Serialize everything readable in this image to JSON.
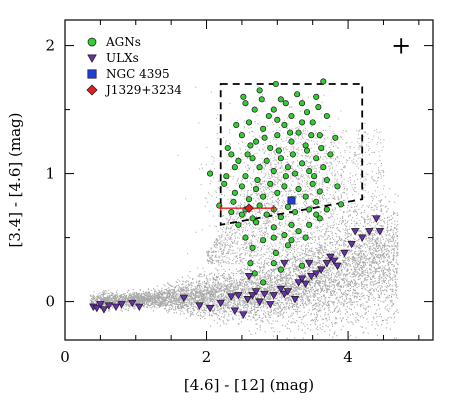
{
  "chart_data": {
    "type": "scatter",
    "title": "",
    "xlabel": "[4.6] - [12] (mag)",
    "ylabel": "[3.4] - [4.6] (mag)",
    "xlim": [
      0,
      5.2
    ],
    "ylim": [
      -0.3,
      2.2
    ],
    "x_ticks": [
      0,
      2,
      4
    ],
    "y_ticks": [
      0,
      1,
      2
    ],
    "minor_tick_step": 0.5,
    "grid": false,
    "legend": {
      "position": "top-left"
    },
    "colors": {
      "background": "#a9a9a9",
      "agn": "#33cc33",
      "ulx": "#6a2fb0",
      "ngc4395": "#1f3fd6",
      "j1329": "#e02020",
      "errorbar": "#e02020"
    },
    "series": [
      {
        "name": "AGNs",
        "marker": "circle",
        "points": [
          [
            2.05,
            1.0
          ],
          [
            2.35,
            1.15
          ],
          [
            2.55,
            1.55
          ],
          [
            2.75,
            1.65
          ],
          [
            2.95,
            1.5
          ],
          [
            3.05,
            1.58
          ],
          [
            3.2,
            1.45
          ],
          [
            3.35,
            1.55
          ],
          [
            3.65,
            1.72
          ],
          [
            3.55,
            1.6
          ],
          [
            2.25,
            0.92
          ],
          [
            2.4,
            1.05
          ],
          [
            2.5,
            1.3
          ],
          [
            2.6,
            1.4
          ],
          [
            2.7,
            1.25
          ],
          [
            2.8,
            1.35
          ],
          [
            2.9,
            1.2
          ],
          [
            3.0,
            1.3
          ],
          [
            3.1,
            1.38
          ],
          [
            3.2,
            1.25
          ],
          [
            3.3,
            1.32
          ],
          [
            3.4,
            1.22
          ],
          [
            3.5,
            1.4
          ],
          [
            3.6,
            1.3
          ],
          [
            3.7,
            1.45
          ],
          [
            2.3,
            1.2
          ],
          [
            2.45,
            1.1
          ],
          [
            2.55,
            0.98
          ],
          [
            2.65,
            1.12
          ],
          [
            2.75,
            1.05
          ],
          [
            2.85,
            1.1
          ],
          [
            2.95,
            1.02
          ],
          [
            3.05,
            1.12
          ],
          [
            3.15,
            1.05
          ],
          [
            3.25,
            1.0
          ],
          [
            3.35,
            1.08
          ],
          [
            3.45,
            1.02
          ],
          [
            3.55,
            1.12
          ],
          [
            3.65,
            1.05
          ],
          [
            3.75,
            1.15
          ],
          [
            2.4,
            0.85
          ],
          [
            2.5,
            0.9
          ],
          [
            2.6,
            0.8
          ],
          [
            2.7,
            0.88
          ],
          [
            2.8,
            0.82
          ],
          [
            2.9,
            0.92
          ],
          [
            3.0,
            0.85
          ],
          [
            3.1,
            0.9
          ],
          [
            3.2,
            0.8
          ],
          [
            3.3,
            0.88
          ],
          [
            3.4,
            0.82
          ],
          [
            3.5,
            0.92
          ],
          [
            3.6,
            0.86
          ],
          [
            3.7,
            0.95
          ],
          [
            2.35,
            0.7
          ],
          [
            2.55,
            0.72
          ],
          [
            2.65,
            0.65
          ],
          [
            2.75,
            0.75
          ],
          [
            2.85,
            0.68
          ],
          [
            2.95,
            0.72
          ],
          [
            3.05,
            0.66
          ],
          [
            3.15,
            0.74
          ],
          [
            3.25,
            0.7
          ],
          [
            3.45,
            0.72
          ],
          [
            3.55,
            0.78
          ],
          [
            2.45,
            0.6
          ],
          [
            2.7,
            0.62
          ],
          [
            2.95,
            0.58
          ],
          [
            3.2,
            0.6
          ],
          [
            3.6,
            0.65
          ],
          [
            2.52,
            1.6
          ],
          [
            2.88,
            1.45
          ],
          [
            3.12,
            1.55
          ],
          [
            3.42,
            1.48
          ],
          [
            2.68,
            1.5
          ],
          [
            3.28,
            1.62
          ],
          [
            2.98,
            1.7
          ],
          [
            3.58,
            1.52
          ],
          [
            2.42,
            1.38
          ],
          [
            3.82,
            1.28
          ],
          [
            2.62,
            1.22
          ],
          [
            2.82,
            1.28
          ],
          [
            3.02,
            1.18
          ],
          [
            3.22,
            1.15
          ],
          [
            3.42,
            1.18
          ],
          [
            3.62,
            1.2
          ],
          [
            2.72,
            0.95
          ],
          [
            3.12,
            0.98
          ],
          [
            3.52,
            0.98
          ],
          [
            3.85,
            0.9
          ],
          [
            2.95,
            0.5
          ],
          [
            3.1,
            0.52
          ],
          [
            3.3,
            0.55
          ],
          [
            2.8,
            0.48
          ],
          [
            3.45,
            0.6
          ],
          [
            2.98,
            0.38
          ],
          [
            2.65,
            0.42
          ],
          [
            2.95,
            0.3
          ],
          [
            3.15,
            0.44
          ],
          [
            2.62,
            0.3
          ],
          [
            2.68,
            0.22
          ],
          [
            3.05,
            0.25
          ],
          [
            2.8,
            0.15
          ],
          [
            3.35,
            0.28
          ],
          [
            3.55,
            0.68
          ],
          [
            3.2,
            0.48
          ],
          [
            3.4,
            0.5
          ],
          [
            2.55,
            0.5
          ],
          [
            3.7,
            0.72
          ],
          [
            3.9,
            0.76
          ],
          [
            2.28,
            0.98
          ],
          [
            2.38,
            0.78
          ],
          [
            2.18,
            0.75
          ],
          [
            2.5,
            0.68
          ],
          [
            3.35,
            1.4
          ],
          [
            2.78,
            1.58
          ],
          [
            3.0,
            1.42
          ],
          [
            3.18,
            1.32
          ],
          [
            2.58,
            1.15
          ],
          [
            3.48,
            1.3
          ]
        ]
      },
      {
        "name": "ULXs",
        "marker": "triangle-down",
        "points": [
          [
            0.4,
            -0.04
          ],
          [
            0.45,
            -0.05
          ],
          [
            0.5,
            -0.02
          ],
          [
            0.55,
            -0.06
          ],
          [
            0.62,
            -0.03
          ],
          [
            0.72,
            -0.04
          ],
          [
            0.8,
            -0.02
          ],
          [
            0.95,
            -0.01
          ],
          [
            1.05,
            -0.04
          ],
          [
            1.68,
            0.03
          ],
          [
            1.9,
            -0.03
          ],
          [
            2.05,
            -0.05
          ],
          [
            2.2,
            -0.01
          ],
          [
            2.35,
            0.04
          ],
          [
            2.4,
            -0.07
          ],
          [
            2.45,
            0.05
          ],
          [
            2.52,
            -0.1
          ],
          [
            2.58,
            0.02
          ],
          [
            2.65,
            0.05
          ],
          [
            2.7,
            0.08
          ],
          [
            2.75,
            0.0
          ],
          [
            2.82,
            0.06
          ],
          [
            2.9,
            -0.02
          ],
          [
            2.95,
            0.05
          ],
          [
            3.05,
            0.1
          ],
          [
            3.1,
            0.06
          ],
          [
            3.15,
            0.08
          ],
          [
            3.25,
            0.02
          ],
          [
            3.3,
            0.15
          ],
          [
            3.35,
            0.18
          ],
          [
            3.4,
            0.14
          ],
          [
            3.48,
            0.2
          ],
          [
            3.55,
            0.22
          ],
          [
            3.62,
            0.25
          ],
          [
            3.7,
            0.3
          ],
          [
            3.75,
            0.35
          ],
          [
            3.8,
            0.32
          ],
          [
            3.85,
            0.28
          ],
          [
            3.95,
            0.38
          ],
          [
            4.05,
            0.45
          ],
          [
            4.1,
            0.55
          ],
          [
            4.2,
            0.5
          ],
          [
            4.3,
            0.55
          ],
          [
            4.4,
            0.65
          ],
          [
            4.45,
            0.55
          ],
          [
            2.6,
            0.2
          ],
          [
            3.1,
            0.3
          ],
          [
            3.45,
            0.3
          ]
        ]
      },
      {
        "name": "NGC 4395",
        "marker": "square",
        "points": [
          [
            3.2,
            0.79
          ]
        ]
      },
      {
        "name": "J1329+3234",
        "marker": "diamond",
        "points": [
          [
            2.6,
            0.73
          ]
        ],
        "x_error": [
          0.4,
          0.35
        ]
      }
    ],
    "dashed_region": {
      "style": "dashed",
      "vertices": [
        [
          2.2,
          1.7
        ],
        [
          4.2,
          1.7
        ],
        [
          4.2,
          0.8
        ],
        [
          2.2,
          0.6
        ]
      ]
    },
    "annotations": [
      {
        "text": "+",
        "x": 4.75,
        "y": 2.0
      }
    ]
  }
}
